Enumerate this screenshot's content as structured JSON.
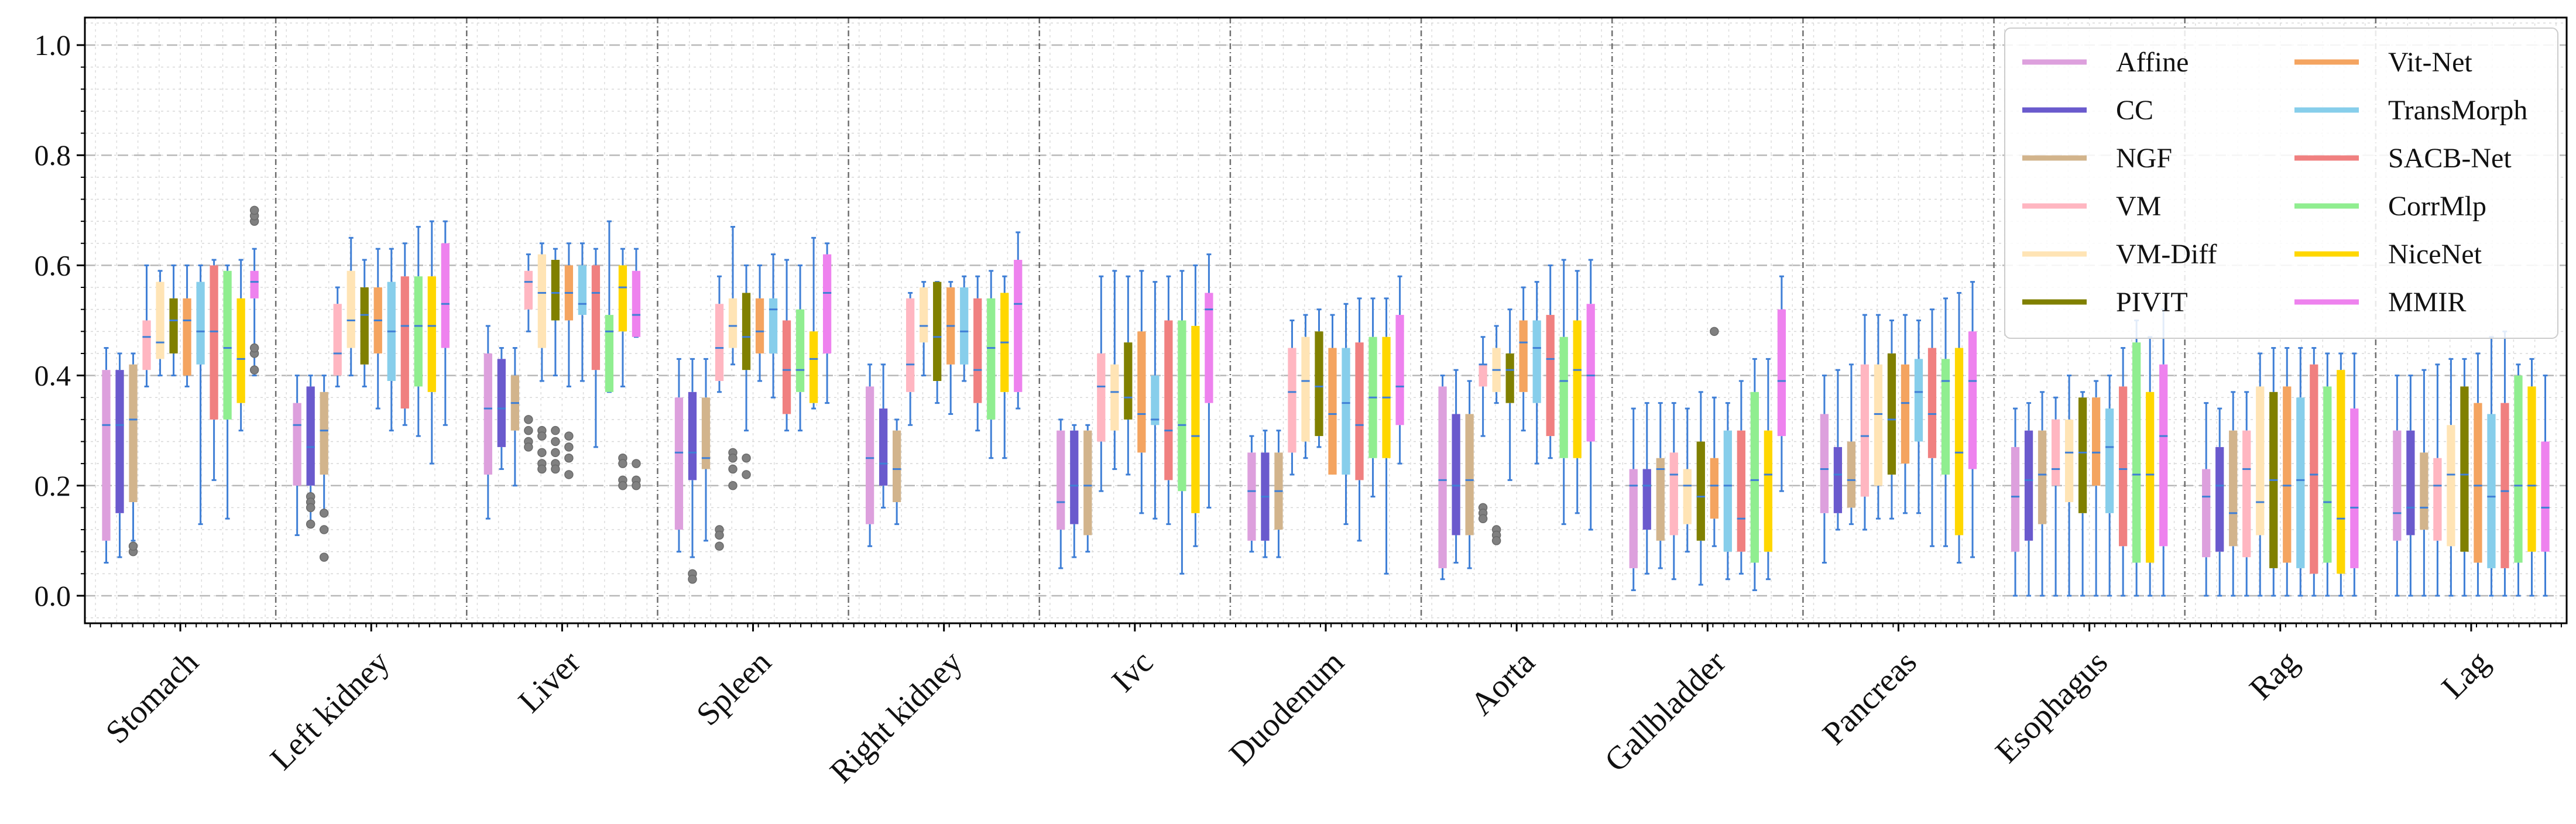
{
  "chart_data": {
    "type": "boxplot",
    "ylim": [
      -0.05,
      1.05
    ],
    "yticks": [
      "0.0",
      "0.2",
      "0.4",
      "0.6",
      "0.8",
      "1.0"
    ],
    "grid": true,
    "legend_position": "top-right",
    "categories": [
      "Stomach",
      "Left kidney",
      "Liver",
      "Spleen",
      "Right kidney",
      "Ivc",
      "Duodenum",
      "Aorta",
      "Gallbladder",
      "Pancreas",
      "Esophagus",
      "Rag",
      "Lag"
    ],
    "series": [
      {
        "name": "Affine",
        "color": "#DDA0DD"
      },
      {
        "name": "CC",
        "color": "#6A5ACD"
      },
      {
        "name": "NGF",
        "color": "#D2B48C"
      },
      {
        "name": "VM",
        "color": "#FFB6C1"
      },
      {
        "name": "VM-Diff",
        "color": "#FFE4B5"
      },
      {
        "name": "PIVIT",
        "color": "#808000"
      },
      {
        "name": "Vit-Net",
        "color": "#F4A460"
      },
      {
        "name": "TransMorph",
        "color": "#87CEEB"
      },
      {
        "name": "SACB-Net",
        "color": "#F08080"
      },
      {
        "name": "CorrMlp",
        "color": "#90EE90"
      },
      {
        "name": "NiceNet",
        "color": "#FFD700"
      },
      {
        "name": "MMIR",
        "color": "#EE82EE"
      }
    ],
    "boxes": [
      [
        [
          0.06,
          0.1,
          0.31,
          0.41,
          0.45
        ],
        [
          0.07,
          0.15,
          0.31,
          0.41,
          0.44
        ],
        [
          0.1,
          0.17,
          0.32,
          0.42,
          0.44
        ],
        [
          0.38,
          0.41,
          0.47,
          0.5,
          0.6
        ],
        [
          0.4,
          0.43,
          0.46,
          0.57,
          0.59
        ],
        [
          0.4,
          0.44,
          0.5,
          0.54,
          0.6
        ],
        [
          0.38,
          0.4,
          0.5,
          0.54,
          0.6
        ],
        [
          0.13,
          0.42,
          0.48,
          0.57,
          0.6
        ],
        [
          0.21,
          0.32,
          0.48,
          0.6,
          0.61
        ],
        [
          0.14,
          0.32,
          0.45,
          0.59,
          0.6
        ],
        [
          0.3,
          0.35,
          0.43,
          0.54,
          0.61
        ],
        [
          0.4,
          0.54,
          0.57,
          0.59,
          0.63
        ]
      ],
      [
        [
          0.11,
          0.2,
          0.31,
          0.35,
          0.4
        ],
        [
          0.13,
          0.2,
          0.27,
          0.38,
          0.4
        ],
        [
          0.15,
          0.22,
          0.3,
          0.37,
          0.4
        ],
        [
          0.38,
          0.4,
          0.44,
          0.53,
          0.56
        ],
        [
          0.4,
          0.45,
          0.5,
          0.59,
          0.65
        ],
        [
          0.38,
          0.42,
          0.51,
          0.56,
          0.61
        ],
        [
          0.34,
          0.44,
          0.5,
          0.56,
          0.63
        ],
        [
          0.3,
          0.39,
          0.48,
          0.57,
          0.63
        ],
        [
          0.31,
          0.34,
          0.49,
          0.58,
          0.64
        ],
        [
          0.29,
          0.38,
          0.49,
          0.58,
          0.67
        ],
        [
          0.24,
          0.37,
          0.49,
          0.58,
          0.68
        ],
        [
          0.31,
          0.45,
          0.53,
          0.64,
          0.68
        ]
      ],
      [
        [
          0.14,
          0.22,
          0.34,
          0.44,
          0.49
        ],
        [
          0.23,
          0.27,
          0.34,
          0.43,
          0.45
        ],
        [
          0.2,
          0.3,
          0.35,
          0.4,
          0.45
        ],
        [
          0.48,
          0.52,
          0.57,
          0.59,
          0.62
        ],
        [
          0.39,
          0.45,
          0.55,
          0.62,
          0.64
        ],
        [
          0.4,
          0.5,
          0.55,
          0.61,
          0.63
        ],
        [
          0.38,
          0.5,
          0.55,
          0.6,
          0.64
        ],
        [
          0.39,
          0.51,
          0.53,
          0.6,
          0.64
        ],
        [
          0.27,
          0.41,
          0.55,
          0.6,
          0.63
        ],
        [
          0.37,
          0.37,
          0.48,
          0.51,
          0.68
        ],
        [
          0.38,
          0.48,
          0.56,
          0.6,
          0.63
        ],
        [
          0.47,
          0.47,
          0.51,
          0.59,
          0.63
        ]
      ],
      [
        [
          0.08,
          0.12,
          0.26,
          0.36,
          0.43
        ],
        [
          0.07,
          0.21,
          0.26,
          0.37,
          0.43
        ],
        [
          0.1,
          0.23,
          0.25,
          0.36,
          0.43
        ],
        [
          0.37,
          0.39,
          0.45,
          0.53,
          0.58
        ],
        [
          0.42,
          0.45,
          0.49,
          0.54,
          0.67
        ],
        [
          0.3,
          0.41,
          0.47,
          0.55,
          0.6
        ],
        [
          0.39,
          0.44,
          0.48,
          0.54,
          0.6
        ],
        [
          0.36,
          0.44,
          0.52,
          0.54,
          0.62
        ],
        [
          0.3,
          0.33,
          0.41,
          0.5,
          0.61
        ],
        [
          0.3,
          0.37,
          0.41,
          0.52,
          0.6
        ],
        [
          0.34,
          0.35,
          0.43,
          0.48,
          0.65
        ],
        [
          0.35,
          0.44,
          0.55,
          0.62,
          0.64
        ]
      ],
      [
        [
          0.09,
          0.13,
          0.25,
          0.38,
          0.42
        ],
        [
          0.16,
          0.2,
          0.24,
          0.34,
          0.42
        ],
        [
          0.13,
          0.17,
          0.23,
          0.3,
          0.32
        ],
        [
          0.31,
          0.37,
          0.42,
          0.54,
          0.55
        ],
        [
          0.4,
          0.46,
          0.49,
          0.56,
          0.57
        ],
        [
          0.35,
          0.39,
          0.47,
          0.57,
          0.57
        ],
        [
          0.33,
          0.42,
          0.49,
          0.56,
          0.57
        ],
        [
          0.39,
          0.42,
          0.48,
          0.56,
          0.58
        ],
        [
          0.3,
          0.35,
          0.41,
          0.54,
          0.58
        ],
        [
          0.25,
          0.32,
          0.45,
          0.54,
          0.59
        ],
        [
          0.25,
          0.37,
          0.46,
          0.55,
          0.58
        ],
        [
          0.34,
          0.37,
          0.53,
          0.61,
          0.66
        ]
      ],
      [
        [
          0.05,
          0.12,
          0.17,
          0.3,
          0.32
        ],
        [
          0.07,
          0.13,
          0.2,
          0.3,
          0.31
        ],
        [
          0.08,
          0.11,
          0.2,
          0.3,
          0.31
        ],
        [
          0.19,
          0.28,
          0.38,
          0.44,
          0.58
        ],
        [
          0.23,
          0.3,
          0.37,
          0.42,
          0.59
        ],
        [
          0.22,
          0.32,
          0.36,
          0.46,
          0.58
        ],
        [
          0.15,
          0.26,
          0.33,
          0.48,
          0.59
        ],
        [
          0.14,
          0.31,
          0.32,
          0.4,
          0.57
        ],
        [
          0.13,
          0.21,
          0.3,
          0.5,
          0.58
        ],
        [
          0.04,
          0.19,
          0.31,
          0.5,
          0.59
        ],
        [
          0.09,
          0.15,
          0.29,
          0.49,
          0.6
        ],
        [
          0.16,
          0.35,
          0.52,
          0.55,
          0.62
        ]
      ],
      [
        [
          0.08,
          0.1,
          0.19,
          0.26,
          0.29
        ],
        [
          0.07,
          0.1,
          0.18,
          0.26,
          0.3
        ],
        [
          0.07,
          0.12,
          0.19,
          0.26,
          0.3
        ],
        [
          0.22,
          0.26,
          0.37,
          0.45,
          0.5
        ],
        [
          0.25,
          0.28,
          0.39,
          0.47,
          0.51
        ],
        [
          0.27,
          0.29,
          0.38,
          0.48,
          0.52
        ],
        [
          0.27,
          0.22,
          0.33,
          0.45,
          0.51
        ],
        [
          0.13,
          0.22,
          0.35,
          0.45,
          0.53
        ],
        [
          0.1,
          0.21,
          0.31,
          0.46,
          0.54
        ],
        [
          0.18,
          0.25,
          0.36,
          0.47,
          0.54
        ],
        [
          0.04,
          0.25,
          0.36,
          0.47,
          0.54
        ],
        [
          0.24,
          0.31,
          0.38,
          0.51,
          0.58
        ]
      ],
      [
        [
          0.03,
          0.05,
          0.21,
          0.38,
          0.4
        ],
        [
          0.06,
          0.11,
          0.2,
          0.33,
          0.41
        ],
        [
          0.05,
          0.11,
          0.21,
          0.33,
          0.39
        ],
        [
          0.29,
          0.38,
          0.42,
          0.42,
          0.47
        ],
        [
          0.35,
          0.37,
          0.41,
          0.45,
          0.49
        ],
        [
          0.21,
          0.35,
          0.41,
          0.44,
          0.52
        ],
        [
          0.3,
          0.37,
          0.46,
          0.5,
          0.56
        ],
        [
          0.24,
          0.35,
          0.45,
          0.5,
          0.57
        ],
        [
          0.25,
          0.29,
          0.43,
          0.51,
          0.6
        ],
        [
          0.13,
          0.25,
          0.39,
          0.47,
          0.61
        ],
        [
          0.15,
          0.25,
          0.41,
          0.5,
          0.59
        ],
        [
          0.12,
          0.28,
          0.4,
          0.53,
          0.61
        ]
      ],
      [
        [
          0.01,
          0.05,
          0.2,
          0.23,
          0.34
        ],
        [
          0.04,
          0.12,
          0.2,
          0.23,
          0.35
        ],
        [
          0.05,
          0.1,
          0.23,
          0.25,
          0.35
        ],
        [
          0.03,
          0.11,
          0.22,
          0.26,
          0.35
        ],
        [
          0.08,
          0.13,
          0.2,
          0.23,
          0.34
        ],
        [
          0.02,
          0.1,
          0.18,
          0.28,
          0.37
        ],
        [
          0.09,
          0.14,
          0.2,
          0.25,
          0.36
        ],
        [
          0.03,
          0.08,
          0.2,
          0.3,
          0.35
        ],
        [
          0.04,
          0.08,
          0.14,
          0.3,
          0.39
        ],
        [
          0.01,
          0.06,
          0.21,
          0.37,
          0.43
        ],
        [
          0.03,
          0.08,
          0.22,
          0.3,
          0.43
        ],
        [
          0.19,
          0.29,
          0.39,
          0.52,
          0.58
        ]
      ],
      [
        [
          0.06,
          0.15,
          0.23,
          0.33,
          0.4
        ],
        [
          0.12,
          0.15,
          0.22,
          0.27,
          0.41
        ],
        [
          0.13,
          0.16,
          0.21,
          0.28,
          0.42
        ],
        [
          0.12,
          0.18,
          0.29,
          0.42,
          0.51
        ],
        [
          0.14,
          0.2,
          0.33,
          0.42,
          0.51
        ],
        [
          0.14,
          0.22,
          0.32,
          0.44,
          0.5
        ],
        [
          0.15,
          0.24,
          0.35,
          0.42,
          0.51
        ],
        [
          0.15,
          0.28,
          0.37,
          0.43,
          0.5
        ],
        [
          0.09,
          0.25,
          0.33,
          0.45,
          0.52
        ],
        [
          0.09,
          0.22,
          0.39,
          0.43,
          0.54
        ],
        [
          0.06,
          0.11,
          0.26,
          0.45,
          0.55
        ],
        [
          0.07,
          0.23,
          0.39,
          0.48,
          0.57
        ]
      ],
      [
        [
          0.0,
          0.08,
          0.18,
          0.27,
          0.34
        ],
        [
          0.0,
          0.1,
          0.21,
          0.3,
          0.35
        ],
        [
          0.0,
          0.13,
          0.22,
          0.3,
          0.37
        ],
        [
          0.0,
          0.2,
          0.23,
          0.32,
          0.36
        ],
        [
          0.0,
          0.17,
          0.26,
          0.32,
          0.4
        ],
        [
          0.0,
          0.15,
          0.26,
          0.36,
          0.37
        ],
        [
          0.0,
          0.2,
          0.26,
          0.36,
          0.39
        ],
        [
          0.0,
          0.15,
          0.27,
          0.34,
          0.4
        ],
        [
          0.0,
          0.09,
          0.23,
          0.38,
          0.45
        ],
        [
          0.0,
          0.06,
          0.22,
          0.46,
          0.5
        ],
        [
          0.0,
          0.06,
          0.22,
          0.37,
          0.47
        ],
        [
          0.0,
          0.09,
          0.29,
          0.42,
          0.52
        ]
      ],
      [
        [
          0.0,
          0.07,
          0.18,
          0.23,
          0.35
        ],
        [
          0.0,
          0.08,
          0.2,
          0.27,
          0.34
        ],
        [
          0.0,
          0.09,
          0.15,
          0.3,
          0.37
        ],
        [
          0.0,
          0.07,
          0.23,
          0.3,
          0.37
        ],
        [
          0.0,
          0.11,
          0.17,
          0.38,
          0.44
        ],
        [
          0.0,
          0.05,
          0.21,
          0.37,
          0.45
        ],
        [
          0.0,
          0.06,
          0.2,
          0.38,
          0.45
        ],
        [
          0.0,
          0.05,
          0.21,
          0.36,
          0.45
        ],
        [
          0.0,
          0.04,
          0.22,
          0.42,
          0.45
        ],
        [
          0.0,
          0.06,
          0.17,
          0.38,
          0.44
        ],
        [
          0.0,
          0.04,
          0.14,
          0.41,
          0.44
        ],
        [
          0.0,
          0.05,
          0.16,
          0.34,
          0.44
        ]
      ],
      [
        [
          0.0,
          0.1,
          0.15,
          0.3,
          0.4
        ],
        [
          0.0,
          0.11,
          0.16,
          0.3,
          0.4
        ],
        [
          0.0,
          0.12,
          0.16,
          0.26,
          0.41
        ],
        [
          0.0,
          0.1,
          0.2,
          0.25,
          0.42
        ],
        [
          0.0,
          0.09,
          0.22,
          0.31,
          0.43
        ],
        [
          0.0,
          0.08,
          0.22,
          0.38,
          0.43
        ],
        [
          0.0,
          0.06,
          0.2,
          0.35,
          0.44
        ],
        [
          0.0,
          0.05,
          0.18,
          0.33,
          0.47
        ],
        [
          0.0,
          0.05,
          0.19,
          0.35,
          0.48
        ],
        [
          0.0,
          0.06,
          0.2,
          0.4,
          0.42
        ],
        [
          0.0,
          0.08,
          0.2,
          0.38,
          0.43
        ],
        [
          0.0,
          0.08,
          0.16,
          0.28,
          0.4
        ]
      ]
    ],
    "outliers": [
      {
        "category": 0,
        "series": 2,
        "values": [
          0.08,
          0.09
        ]
      },
      {
        "category": 0,
        "series": 11,
        "values": [
          0.68,
          0.69,
          0.7,
          0.44,
          0.45,
          0.41
        ]
      },
      {
        "category": 1,
        "series": 1,
        "values": [
          0.18,
          0.17,
          0.16,
          0.13
        ]
      },
      {
        "category": 1,
        "series": 2,
        "values": [
          0.15,
          0.12,
          0.07
        ]
      },
      {
        "category": 2,
        "series": 3,
        "values": [
          0.32,
          0.3,
          0.28,
          0.27
        ]
      },
      {
        "category": 2,
        "series": 4,
        "values": [
          0.3,
          0.29,
          0.26,
          0.24,
          0.23
        ]
      },
      {
        "category": 2,
        "series": 5,
        "values": [
          0.3,
          0.28,
          0.26,
          0.24,
          0.23
        ]
      },
      {
        "category": 2,
        "series": 6,
        "values": [
          0.29,
          0.27,
          0.25,
          0.22
        ]
      },
      {
        "category": 2,
        "series": 10,
        "values": [
          0.25,
          0.24,
          0.21,
          0.2
        ]
      },
      {
        "category": 2,
        "series": 11,
        "values": [
          0.24,
          0.21,
          0.2
        ]
      },
      {
        "category": 3,
        "series": 1,
        "values": [
          0.04,
          0.03
        ]
      },
      {
        "category": 3,
        "series": 3,
        "values": [
          0.12,
          0.11,
          0.09
        ]
      },
      {
        "category": 3,
        "series": 4,
        "values": [
          0.26,
          0.25,
          0.23,
          0.2
        ]
      },
      {
        "category": 3,
        "series": 5,
        "values": [
          0.25,
          0.22
        ]
      },
      {
        "category": 7,
        "series": 3,
        "values": [
          0.16,
          0.15,
          0.14
        ]
      },
      {
        "category": 7,
        "series": 4,
        "values": [
          0.12,
          0.11,
          0.1
        ]
      },
      {
        "category": 8,
        "series": 6,
        "values": [
          0.48
        ]
      }
    ]
  }
}
